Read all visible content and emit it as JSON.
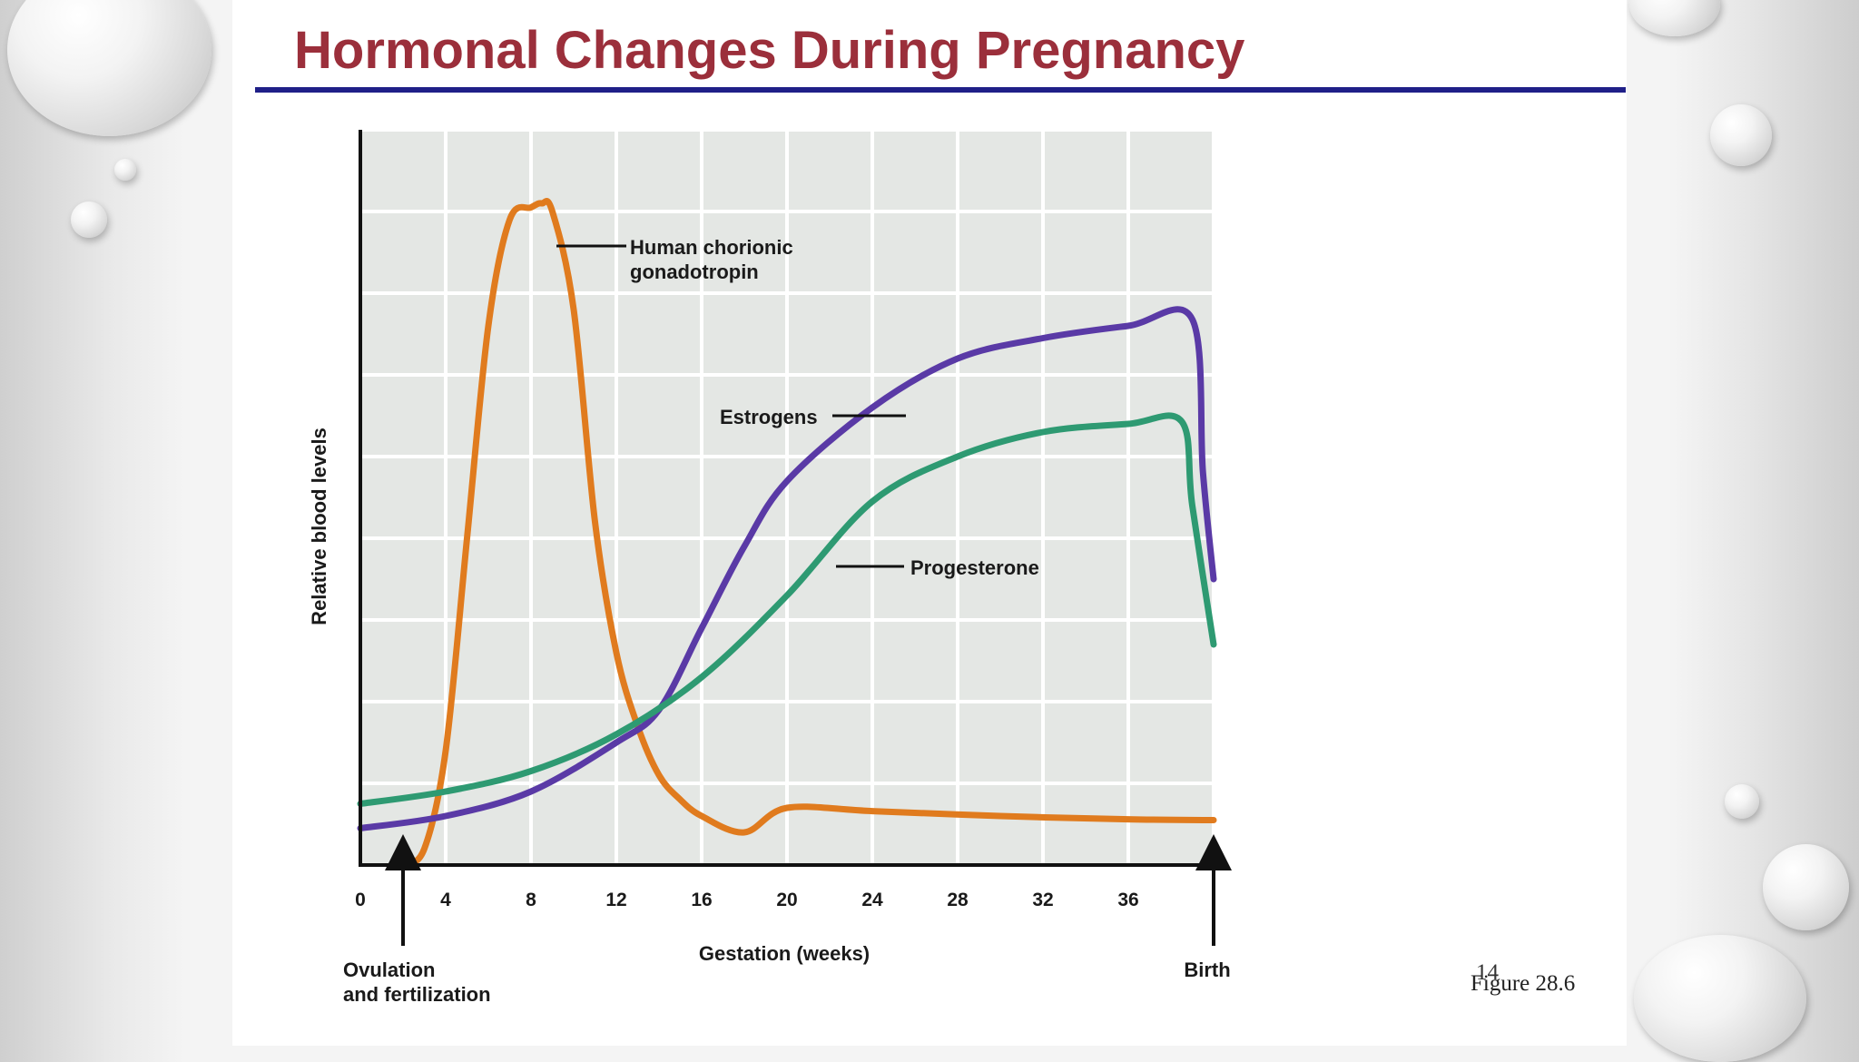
{
  "slide": {
    "title": "Hormonal Changes During Pregnancy",
    "figure_label": "Figure 28.6",
    "page_number": "14"
  },
  "colors": {
    "title": "#9b2f3b",
    "title_rule": "#1f1f88",
    "plot_background": "#e4e7e4",
    "grid": "#ffffff",
    "hcg": "#e07b1e",
    "estrogens": "#5a3aa6",
    "progesterone": "#2e9a72"
  },
  "chart_data": {
    "type": "line",
    "title": "",
    "xlabel": "Gestation (weeks)",
    "ylabel": "Relative blood levels",
    "xlim": [
      0,
      40
    ],
    "ylim": [
      0,
      9
    ],
    "x_ticks": [
      0,
      4,
      8,
      12,
      16,
      20,
      24,
      28,
      32,
      36
    ],
    "y_ticks": [],
    "grid": true,
    "series": [
      {
        "name": "Human chorionic gonadotropin",
        "label_lines": [
          "Human chorionic",
          "gonadotropin"
        ],
        "color": "#e07b1e",
        "points": [
          [
            2,
            0
          ],
          [
            3,
            0.2
          ],
          [
            4,
            1.4
          ],
          [
            5,
            4.0
          ],
          [
            6,
            6.6
          ],
          [
            7,
            7.9
          ],
          [
            8,
            8.05
          ],
          [
            8.5,
            8.1
          ],
          [
            9,
            8.0
          ],
          [
            10,
            6.8
          ],
          [
            11,
            4.2
          ],
          [
            12,
            2.6
          ],
          [
            13,
            1.7
          ],
          [
            14,
            1.1
          ],
          [
            15,
            0.8
          ],
          [
            16,
            0.6
          ],
          [
            18,
            0.4
          ],
          [
            20,
            0.7
          ],
          [
            24,
            0.66
          ],
          [
            30,
            0.6
          ],
          [
            36,
            0.56
          ],
          [
            40,
            0.55
          ]
        ]
      },
      {
        "name": "Estrogens",
        "label_lines": [
          "Estrogens"
        ],
        "color": "#5a3aa6",
        "points": [
          [
            0,
            0.45
          ],
          [
            4,
            0.6
          ],
          [
            8,
            0.9
          ],
          [
            12,
            1.5
          ],
          [
            14,
            1.9
          ],
          [
            16,
            2.9
          ],
          [
            18,
            3.9
          ],
          [
            20,
            4.7
          ],
          [
            24,
            5.6
          ],
          [
            28,
            6.2
          ],
          [
            32,
            6.45
          ],
          [
            36,
            6.6
          ],
          [
            39,
            6.68
          ],
          [
            39.5,
            4.8
          ],
          [
            40,
            3.5
          ]
        ]
      },
      {
        "name": "Progesterone",
        "label_lines": [
          "Progesterone"
        ],
        "color": "#2e9a72",
        "points": [
          [
            0,
            0.75
          ],
          [
            4,
            0.9
          ],
          [
            8,
            1.15
          ],
          [
            12,
            1.6
          ],
          [
            16,
            2.3
          ],
          [
            20,
            3.3
          ],
          [
            24,
            4.45
          ],
          [
            28,
            5.0
          ],
          [
            32,
            5.3
          ],
          [
            36,
            5.4
          ],
          [
            38.5,
            5.43
          ],
          [
            39,
            4.4
          ],
          [
            40,
            2.7
          ]
        ]
      }
    ],
    "annotations": [
      {
        "text_lines": [
          "Ovulation",
          "and fertilization"
        ],
        "x": 2
      },
      {
        "text_lines": [
          "Birth"
        ],
        "x": 40
      }
    ]
  }
}
